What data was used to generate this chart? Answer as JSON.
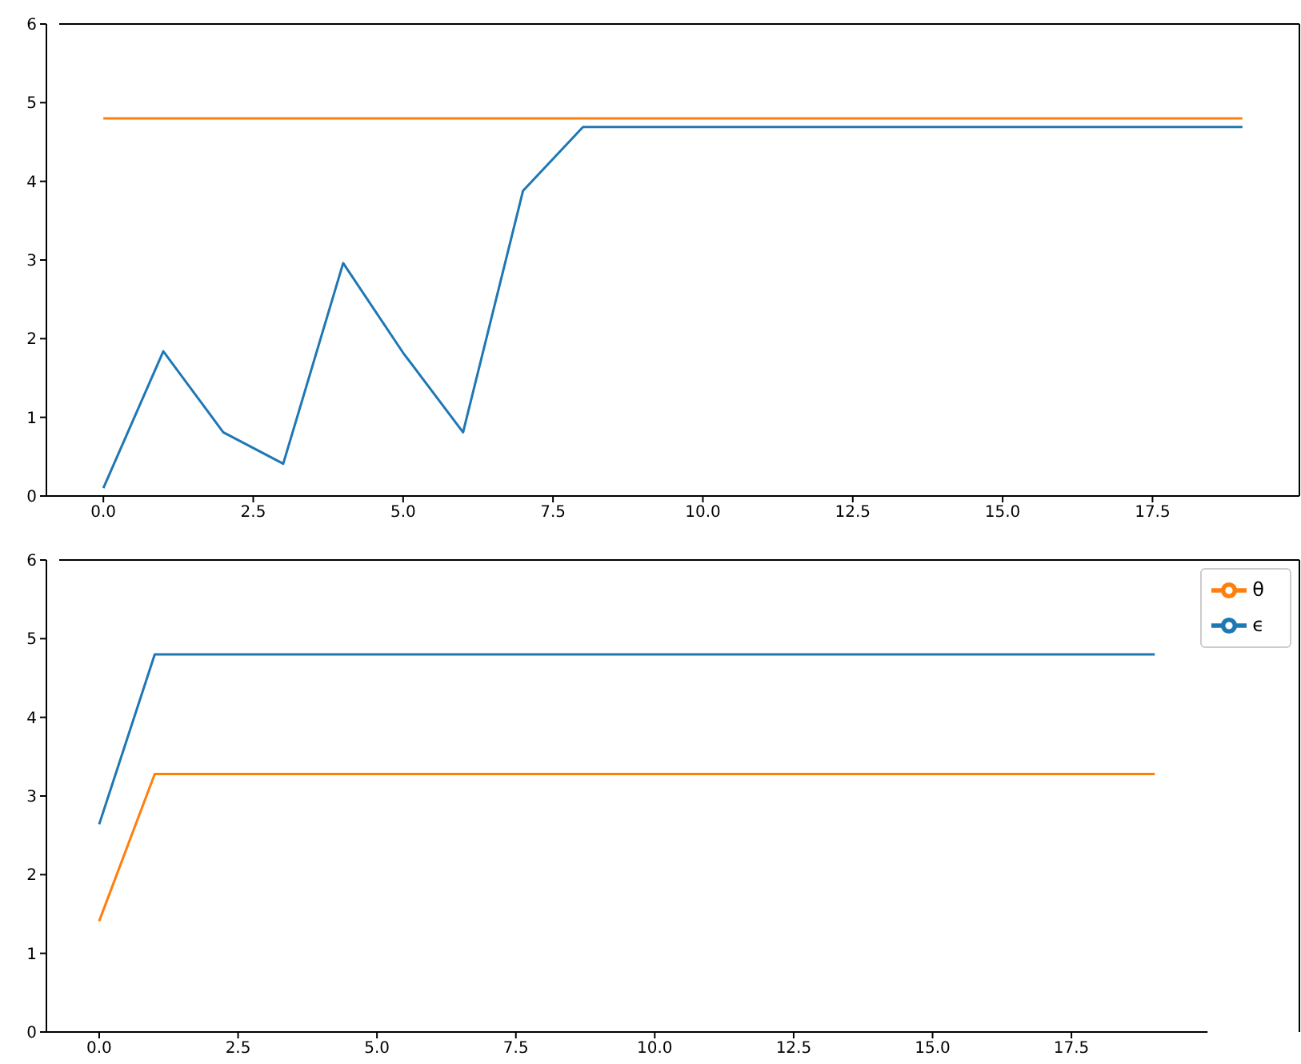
{
  "chart_data": [
    {
      "type": "line",
      "x": [
        0,
        1,
        2,
        3,
        4,
        5,
        6,
        7,
        8,
        9,
        10,
        11,
        12,
        13,
        14,
        15,
        16,
        17,
        18,
        19
      ],
      "series": [
        {
          "color": "#1f77b4",
          "values": [
            0.1,
            1.84,
            0.81,
            0.41,
            2.96,
            1.82,
            0.81,
            3.88,
            4.69,
            4.69,
            4.69,
            4.69,
            4.69,
            4.69,
            4.69,
            4.69,
            4.69,
            4.69,
            4.69,
            4.69
          ]
        },
        {
          "color": "#ff7f0e",
          "values": [
            4.8,
            4.8,
            4.8,
            4.8,
            4.8,
            4.8,
            4.8,
            4.8,
            4.8,
            4.8,
            4.8,
            4.8,
            4.8,
            4.8,
            4.8,
            4.8,
            4.8,
            4.8,
            4.8,
            4.8
          ]
        }
      ],
      "xlim": [
        -0.95,
        19.95
      ],
      "xticks": [
        {
          "value": 0,
          "label": "0.0"
        },
        {
          "value": 2.5,
          "label": "2.5"
        },
        {
          "value": 5,
          "label": "5.0"
        },
        {
          "value": 7.5,
          "label": "7.5"
        },
        {
          "value": 10,
          "label": "10.0"
        },
        {
          "value": 12.5,
          "label": "12.5"
        },
        {
          "value": 15,
          "label": "15.0"
        },
        {
          "value": 17.5,
          "label": "17.5"
        }
      ],
      "ylim": [
        0,
        6
      ],
      "yticks": [
        0,
        1,
        2,
        3,
        4,
        5,
        6
      ]
    },
    {
      "type": "line",
      "x": [
        0,
        1,
        2,
        3,
        4,
        5,
        6,
        7,
        8,
        9,
        10,
        11,
        12,
        13,
        14,
        15,
        16,
        17,
        18,
        19
      ],
      "series": [
        {
          "name": "ϵ",
          "color": "#1f77b4",
          "values": [
            2.64,
            4.8,
            4.8,
            4.8,
            4.8,
            4.8,
            4.8,
            4.8,
            4.8,
            4.8,
            4.8,
            4.8,
            4.8,
            4.8,
            4.8,
            4.8,
            4.8,
            4.8,
            4.8,
            4.8
          ]
        },
        {
          "name": "θ",
          "color": "#ff7f0e",
          "values": [
            1.41,
            3.28,
            3.28,
            3.28,
            3.28,
            3.28,
            3.28,
            3.28,
            3.28,
            3.28,
            3.28,
            3.28,
            3.28,
            3.28,
            3.28,
            3.28,
            3.28,
            3.28,
            3.28,
            3.28
          ]
        }
      ],
      "xlim": [
        -0.95,
        19.95
      ],
      "xticks": [
        {
          "value": 0,
          "label": "0.0"
        },
        {
          "value": 2.5,
          "label": "2.5"
        },
        {
          "value": 5,
          "label": "5.0"
        },
        {
          "value": 7.5,
          "label": "7.5"
        },
        {
          "value": 10,
          "label": "10.0"
        },
        {
          "value": 12.5,
          "label": "12.5"
        },
        {
          "value": 15,
          "label": "15.0"
        },
        {
          "value": 17.5,
          "label": "17.5"
        }
      ],
      "ylim": [
        0,
        6
      ],
      "yticks": [
        0,
        1,
        2,
        3,
        4,
        5,
        6
      ],
      "legend": "top right"
    }
  ]
}
